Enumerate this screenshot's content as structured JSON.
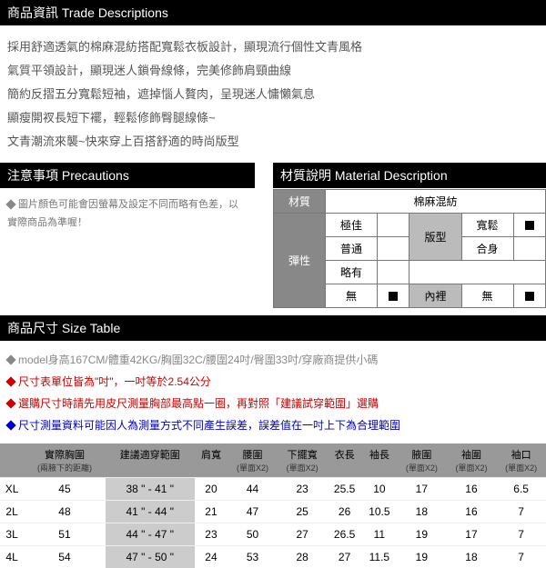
{
  "sections": {
    "trade": {
      "title": "商品資訊 Trade Descriptions"
    },
    "precautions": {
      "title": "注意事項 Precautions"
    },
    "material": {
      "title": "材質說明 Material Description"
    },
    "sizeTable": {
      "title": "商品尺寸 Size Table"
    }
  },
  "tradeLines": [
    "採用舒適透氣的棉麻混紡搭配寬鬆衣板設計，顯現流行個性文青風格",
    "氣質平領設計，顯現迷人鎖骨線條，完美修飾肩頸曲線",
    "簡約反摺五分寬鬆短袖，遮掉惱人贅肉，呈現迷人慵懶氣息",
    "顯瘦開衩長短下襬，輕鬆修飾臀腿線條~",
    "文青潮流來襲~快來穿上百搭舒適的時尚版型"
  ],
  "precautionLines": [
    "圖片顏色可能會因螢幕及設定不同而略有色差，以實際商品為準喔！"
  ],
  "material": {
    "labelMaterial": "材質",
    "valueMaterial": "棉麻混紡",
    "labelElastic": "彈性",
    "elasticOptions": [
      "極佳",
      "普通",
      "略有",
      "無"
    ],
    "labelFit": "版型",
    "fitOptions": [
      "寬鬆",
      "合身"
    ],
    "labelLining": "內裡",
    "liningOption": "無",
    "elasticSelected": 3,
    "fitSelected": 0,
    "liningSelected": 0
  },
  "sizeNotes": [
    {
      "color": "#888888",
      "text": "model身高167CM/體重42KG/胸圍32C/腰圍24吋/臀圍33吋/穿廠商提供小碼"
    },
    {
      "color": "#cc0000",
      "text": "尺寸表單位皆為\"吋\"，一吋等於2.54公分"
    },
    {
      "color": "#cc0000",
      "text": "選購尺寸時請先用皮尺測量胸部最高點一圈，再對照「建議試穿範圍」選購"
    },
    {
      "color": "#0000cc",
      "text": "尺寸測量資料可能因人為測量方式不同產生誤差，誤差值在一吋上下為合理範圍"
    }
  ],
  "sizeTable": {
    "headers": [
      {
        "label": "",
        "sub": ""
      },
      {
        "label": "實際胸圍",
        "sub": "(兩腋下的距離)"
      },
      {
        "label": "建議適穿範圍",
        "sub": ""
      },
      {
        "label": "肩寬",
        "sub": ""
      },
      {
        "label": "腰圍",
        "sub": "(單面X2)"
      },
      {
        "label": "下擺寬",
        "sub": "(單面X2)"
      },
      {
        "label": "衣長",
        "sub": ""
      },
      {
        "label": "袖長",
        "sub": ""
      },
      {
        "label": "腋圍",
        "sub": "(單面X2)"
      },
      {
        "label": "袖圍",
        "sub": "(單面X2)"
      },
      {
        "label": "袖口",
        "sub": "(單面X2)"
      }
    ],
    "rows": [
      [
        "XL",
        "45",
        "38 \" - 41 \"",
        "20",
        "44",
        "23",
        "25.5",
        "10",
        "17",
        "16",
        "6.5"
      ],
      [
        "2L",
        "48",
        "41 \" - 44 \"",
        "21",
        "47",
        "25",
        "26",
        "10.5",
        "18",
        "16",
        "7"
      ],
      [
        "3L",
        "51",
        "44 \" - 47 \"",
        "23",
        "50",
        "27",
        "26.5",
        "11",
        "19",
        "17",
        "7"
      ],
      [
        "4L",
        "54",
        "47 \" - 50 \"",
        "24",
        "53",
        "28",
        "27",
        "11.5",
        "19",
        "18",
        "7"
      ]
    ]
  }
}
